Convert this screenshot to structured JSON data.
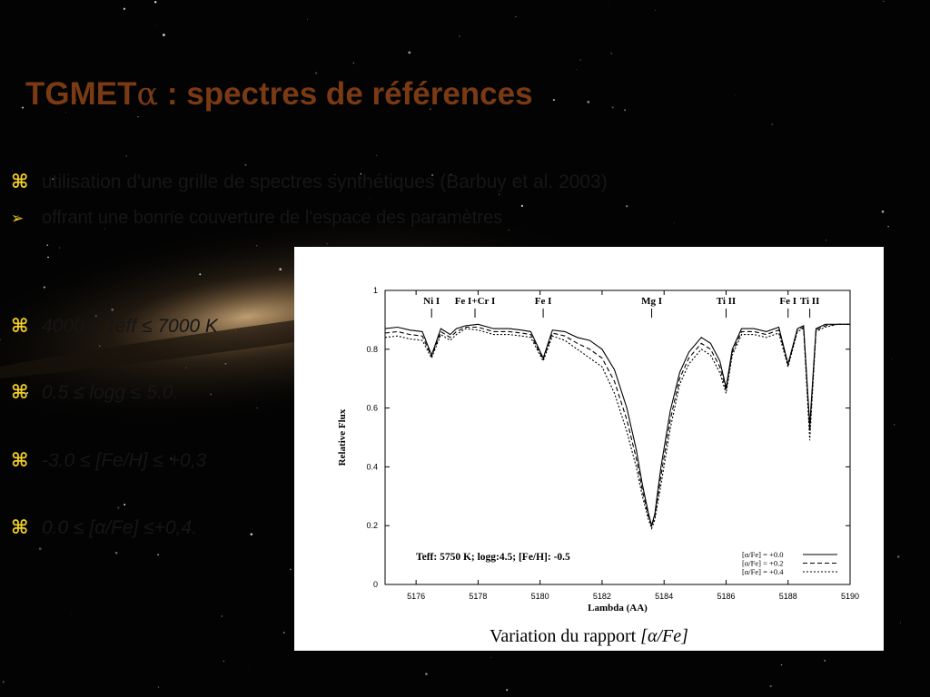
{
  "slide": {
    "title_prefix": "TGMET",
    "title_alpha": "α",
    "title_suffix": " : spectres de références",
    "bullets": [
      {
        "symbol": "⌘",
        "text": "utilisation d'une grille de spectres synthétiques (Barbuy et al. 2003)"
      },
      {
        "symbol": "➢",
        "text": "offrant une bonne couverture de l'espace des paramètres"
      },
      {
        "symbol": "⌘",
        "text": "4000 ≤ Teff ≤ 7000 K"
      },
      {
        "symbol": "⌘",
        "text": "0.5 ≤ logg ≤ 5.0."
      },
      {
        "symbol": "⌘",
        "text": "-3.0 ≤ [Fe/H] ≤ +0,3"
      },
      {
        "symbol": "⌘",
        "text": "0.0 ≤ [α/Fe] ≤+0,4."
      }
    ],
    "caption_text": "Variation du rapport ",
    "caption_italic": "[α/Fe]"
  },
  "colors": {
    "title": "#7a3a14",
    "bullet_symbol": "#f0ce2a",
    "background": "#030303"
  },
  "chart_data": {
    "type": "line",
    "xlabel": "Lambda (AA)",
    "ylabel": "Relative Flux",
    "xlim": [
      5175,
      5190
    ],
    "ylim": [
      0,
      1
    ],
    "xticks": [
      5176,
      5178,
      5180,
      5182,
      5184,
      5186,
      5188,
      5190
    ],
    "yticks": [
      0,
      0.2,
      0.4,
      0.6,
      0.8,
      1
    ],
    "annotation": "Teff: 5750 K; logg:4.5; [Fe/H]: -0.5",
    "line_ids": [
      {
        "label": "Ni I",
        "x": 5176.5
      },
      {
        "label": "Fe I+Cr I",
        "x": 5177.9
      },
      {
        "label": "Fe I",
        "x": 5180.1
      },
      {
        "label": "Mg I",
        "x": 5183.6
      },
      {
        "label": "Ti II",
        "x": 5186.0
      },
      {
        "label": "Fe I",
        "x": 5188.0
      },
      {
        "label": "Ti II",
        "x": 5188.7
      }
    ],
    "legend_position": "bottom-right",
    "series": [
      {
        "name": "[α/Fe] = +0.0",
        "style": "solid",
        "x": [
          5175.0,
          5175.4,
          5175.8,
          5176.2,
          5176.5,
          5176.8,
          5177.1,
          5177.3,
          5177.6,
          5178.0,
          5178.5,
          5179.0,
          5179.4,
          5179.7,
          5180.1,
          5180.4,
          5180.8,
          5181.2,
          5181.6,
          5182.0,
          5182.4,
          5182.8,
          5183.1,
          5183.3,
          5183.5,
          5183.6,
          5183.7,
          5183.9,
          5184.2,
          5184.5,
          5184.8,
          5185.2,
          5185.5,
          5185.8,
          5186.0,
          5186.2,
          5186.5,
          5186.9,
          5187.3,
          5187.7,
          5188.0,
          5188.3,
          5188.5,
          5188.7,
          5188.9,
          5189.2,
          5189.6,
          5190.0
        ],
        "y": [
          0.87,
          0.875,
          0.865,
          0.86,
          0.78,
          0.87,
          0.85,
          0.87,
          0.88,
          0.885,
          0.87,
          0.87,
          0.865,
          0.86,
          0.77,
          0.865,
          0.86,
          0.84,
          0.83,
          0.8,
          0.73,
          0.6,
          0.46,
          0.34,
          0.24,
          0.2,
          0.24,
          0.4,
          0.59,
          0.72,
          0.79,
          0.84,
          0.82,
          0.76,
          0.67,
          0.8,
          0.87,
          0.87,
          0.86,
          0.875,
          0.75,
          0.87,
          0.88,
          0.54,
          0.87,
          0.885,
          0.885,
          0.885
        ]
      },
      {
        "name": "[α/Fe] = +0.2",
        "style": "dashed",
        "x": [
          5175.0,
          5175.4,
          5175.8,
          5176.2,
          5176.5,
          5176.8,
          5177.1,
          5177.3,
          5177.6,
          5178.0,
          5178.5,
          5179.0,
          5179.4,
          5179.7,
          5180.1,
          5180.4,
          5180.8,
          5181.2,
          5181.6,
          5182.0,
          5182.4,
          5182.8,
          5183.1,
          5183.3,
          5183.5,
          5183.6,
          5183.7,
          5183.9,
          5184.2,
          5184.5,
          5184.8,
          5185.2,
          5185.5,
          5185.8,
          5186.0,
          5186.2,
          5186.5,
          5186.9,
          5187.3,
          5187.7,
          5188.0,
          5188.3,
          5188.5,
          5188.7,
          5188.9,
          5189.2,
          5189.6,
          5190.0
        ],
        "y": [
          0.855,
          0.86,
          0.85,
          0.845,
          0.775,
          0.86,
          0.84,
          0.86,
          0.875,
          0.875,
          0.86,
          0.86,
          0.855,
          0.85,
          0.765,
          0.855,
          0.845,
          0.82,
          0.8,
          0.77,
          0.69,
          0.56,
          0.43,
          0.32,
          0.23,
          0.2,
          0.23,
          0.37,
          0.56,
          0.7,
          0.77,
          0.82,
          0.8,
          0.74,
          0.66,
          0.79,
          0.86,
          0.86,
          0.85,
          0.865,
          0.745,
          0.865,
          0.875,
          0.52,
          0.865,
          0.88,
          0.885,
          0.885
        ]
      },
      {
        "name": "[α/Fe] = +0.4",
        "style": "dotted",
        "x": [
          5175.0,
          5175.4,
          5175.8,
          5176.2,
          5176.5,
          5176.8,
          5177.1,
          5177.3,
          5177.6,
          5178.0,
          5178.5,
          5179.0,
          5179.4,
          5179.7,
          5180.1,
          5180.4,
          5180.8,
          5181.2,
          5181.6,
          5182.0,
          5182.4,
          5182.8,
          5183.1,
          5183.3,
          5183.5,
          5183.6,
          5183.7,
          5183.9,
          5184.2,
          5184.5,
          5184.8,
          5185.2,
          5185.5,
          5185.8,
          5186.0,
          5186.2,
          5186.5,
          5186.9,
          5187.3,
          5187.7,
          5188.0,
          5188.3,
          5188.5,
          5188.7,
          5188.9,
          5189.2,
          5189.6,
          5190.0
        ],
        "y": [
          0.84,
          0.845,
          0.835,
          0.83,
          0.77,
          0.85,
          0.83,
          0.85,
          0.87,
          0.865,
          0.85,
          0.85,
          0.845,
          0.84,
          0.76,
          0.845,
          0.83,
          0.8,
          0.77,
          0.74,
          0.65,
          0.52,
          0.4,
          0.3,
          0.22,
          0.19,
          0.22,
          0.34,
          0.53,
          0.68,
          0.75,
          0.8,
          0.78,
          0.72,
          0.65,
          0.78,
          0.85,
          0.85,
          0.84,
          0.855,
          0.74,
          0.86,
          0.87,
          0.49,
          0.86,
          0.875,
          0.885,
          0.885
        ]
      }
    ]
  }
}
